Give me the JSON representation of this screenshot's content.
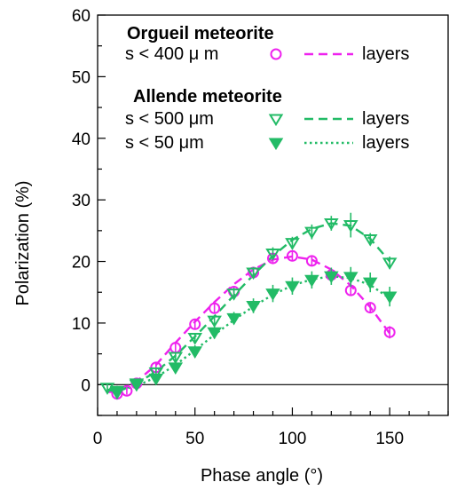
{
  "chart_data": {
    "type": "scatter",
    "title": "",
    "xlabel": "Phase angle (°)",
    "ylabel": "Polarization (%)",
    "xlim": [
      0,
      180
    ],
    "ylim": [
      -5,
      60
    ],
    "x_ticks": [
      "0",
      "50",
      "100",
      "150"
    ],
    "y_ticks": [
      "0",
      "10",
      "20",
      "30",
      "40",
      "50",
      "60"
    ],
    "zero_line": true,
    "grid": false,
    "legend": {
      "position": "top",
      "groups": [
        {
          "heading": "Orgueil meteorite",
          "entries": [
            {
              "label": "s < 400 μ m",
              "line_label": "layers",
              "color": "#ee22ee",
              "marker": "open-circle",
              "line_style": "dashed"
            }
          ]
        },
        {
          "heading": "Allende meteorite",
          "entries": [
            {
              "label": "s <  500 μm",
              "line_label": "layers",
              "color": "#22bb66",
              "marker": "open-triangle-down",
              "line_style": "dashed"
            },
            {
              "label": "s <    50 μm",
              "line_label": "layers",
              "color": "#22bb66",
              "marker": "filled-triangle-down",
              "line_style": "dotted"
            }
          ]
        }
      ]
    },
    "series": [
      {
        "name": "s < 400 μ m",
        "color": "#ee22ee",
        "marker": "open-circle",
        "x": [
          10,
          15,
          20,
          30,
          40,
          50,
          60,
          70,
          80,
          90,
          100,
          110,
          120,
          130,
          140,
          150
        ],
        "y": [
          -1.5,
          -1.0,
          0.2,
          2.8,
          6.0,
          9.8,
          12.4,
          15.1,
          18.2,
          20.5,
          20.9,
          20.1,
          17.8,
          15.3,
          12.5,
          8.5
        ],
        "err": [
          0.8,
          0.6,
          0.6,
          0.8,
          0.8,
          0.8,
          0.8,
          0.8,
          0.8,
          0.8,
          0.8,
          0.8,
          0.8,
          0.8,
          0.8,
          1.0
        ]
      },
      {
        "name": "s <  500 μm",
        "color": "#22bb66",
        "marker": "open-triangle-down",
        "x": [
          5,
          10,
          20,
          30,
          40,
          50,
          60,
          70,
          80,
          90,
          100,
          110,
          120,
          130,
          140,
          150
        ],
        "y": [
          -0.5,
          -1.3,
          0.2,
          2.0,
          4.5,
          7.6,
          10.4,
          14.8,
          18.2,
          21.3,
          23.0,
          24.8,
          26.2,
          25.9,
          23.6,
          19.8
        ],
        "err": [
          0.7,
          0.7,
          0.7,
          0.7,
          0.8,
          0.8,
          0.9,
          0.9,
          0.9,
          1.0,
          1.0,
          1.2,
          1.2,
          2.0,
          1.0,
          1.0
        ]
      },
      {
        "name": "s <    50 μm",
        "color": "#22bb66",
        "marker": "filled-triangle-down",
        "x": [
          10,
          20,
          30,
          40,
          50,
          60,
          70,
          80,
          90,
          100,
          110,
          120,
          130,
          140,
          150
        ],
        "y": [
          -1.0,
          0.0,
          1.0,
          2.8,
          5.4,
          8.5,
          10.8,
          12.8,
          14.8,
          16.0,
          17.0,
          17.6,
          17.5,
          16.6,
          14.3
        ],
        "err": [
          0.8,
          0.8,
          0.8,
          1.0,
          1.0,
          1.0,
          1.0,
          1.2,
          1.4,
          1.4,
          1.4,
          1.4,
          1.6,
          1.6,
          1.6
        ]
      }
    ],
    "fit_lines": [
      {
        "name": "layers",
        "color": "#ee22ee",
        "style": "dashed",
        "x": [
          5,
          10,
          20,
          30,
          40,
          50,
          60,
          70,
          80,
          90,
          100,
          110,
          120,
          130,
          140,
          150
        ],
        "y": [
          -1.2,
          -1.2,
          0.5,
          3.2,
          6.8,
          10.2,
          13.4,
          16.3,
          18.7,
          20.3,
          20.8,
          20.3,
          18.7,
          16.1,
          12.6,
          8.3
        ]
      },
      {
        "name": "layers",
        "color": "#22bb66",
        "style": "dashed",
        "x": [
          5,
          10,
          20,
          30,
          40,
          50,
          60,
          70,
          80,
          90,
          100,
          110,
          120,
          130,
          140,
          150
        ],
        "y": [
          -0.8,
          -1.2,
          0.2,
          2.1,
          4.7,
          7.8,
          11.1,
          14.5,
          17.8,
          20.9,
          23.5,
          25.3,
          26.2,
          25.8,
          23.7,
          20.0
        ]
      },
      {
        "name": "layers",
        "color": "#22bb66",
        "style": "dotted",
        "x": [
          5,
          10,
          20,
          30,
          40,
          50,
          60,
          70,
          80,
          90,
          100,
          110,
          120,
          130,
          140,
          150
        ],
        "y": [
          -0.8,
          -1.0,
          -0.2,
          1.2,
          3.2,
          5.6,
          8.1,
          10.5,
          12.7,
          14.6,
          16.1,
          17.1,
          17.6,
          17.3,
          16.2,
          14.0
        ]
      }
    ]
  }
}
